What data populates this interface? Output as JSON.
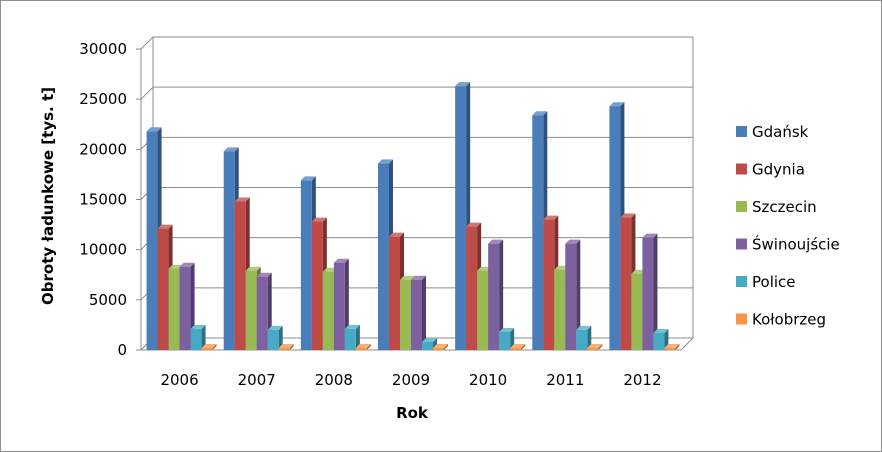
{
  "chart_data": {
    "type": "bar",
    "title": "",
    "xlabel": "Rok",
    "ylabel": "Obroty ładunkowe [tys. t]",
    "categories": [
      "2006",
      "2007",
      "2008",
      "2009",
      "2010",
      "2011",
      "2012"
    ],
    "ylim": [
      0,
      30000
    ],
    "yticks": [
      0,
      5000,
      10000,
      15000,
      20000,
      25000,
      30000
    ],
    "grid": true,
    "legend_position": "right",
    "series": [
      {
        "name": "Gdańsk",
        "color": "#4a7ebb",
        "values": [
          21800,
          19800,
          16900,
          18600,
          26300,
          23400,
          24300
        ]
      },
      {
        "name": "Gdynia",
        "color": "#be4b48",
        "values": [
          12100,
          14800,
          12800,
          11300,
          12300,
          13000,
          13200
        ]
      },
      {
        "name": "Szczecin",
        "color": "#98b954",
        "values": [
          8100,
          7900,
          7800,
          7000,
          7900,
          8000,
          7600
        ]
      },
      {
        "name": "Świnoujście",
        "color": "#7d60a0",
        "values": [
          8300,
          7300,
          8700,
          7000,
          10600,
          10600,
          11200
        ]
      },
      {
        "name": "Police",
        "color": "#46aac5",
        "values": [
          2100,
          2000,
          2100,
          800,
          1800,
          2000,
          1700
        ]
      },
      {
        "name": "Kołobrzeg",
        "color": "#f79646",
        "values": [
          200,
          200,
          200,
          200,
          200,
          200,
          200
        ]
      }
    ]
  }
}
